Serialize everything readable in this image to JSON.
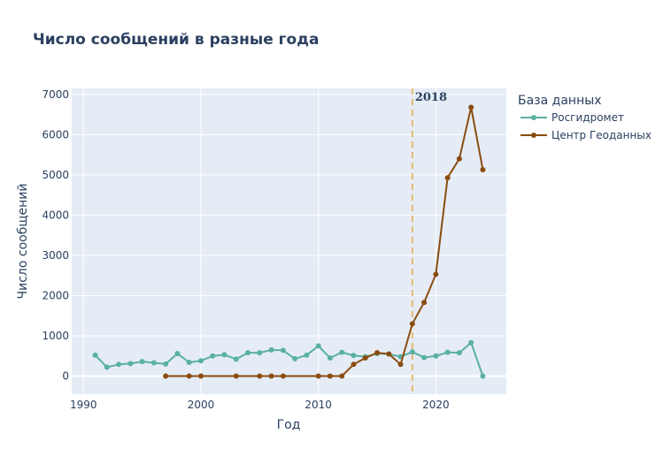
{
  "chart_data": {
    "type": "line",
    "title": "Число сообщений в разные года",
    "xlabel": "Год",
    "ylabel": "Число сообщений",
    "xlim": [
      1989,
      2026
    ],
    "ylim": [
      -450,
      7150
    ],
    "x_ticks": [
      1990,
      2000,
      2010,
      2020
    ],
    "y_ticks": [
      0,
      1000,
      2000,
      3000,
      4000,
      5000,
      6000,
      7000
    ],
    "grid": true,
    "legend": {
      "title": "База данных",
      "placement": "top-right outside"
    },
    "annotation": {
      "x": 2018,
      "label": "2018",
      "style": "dashed vertical line",
      "color": "#e6b96e"
    },
    "series": [
      {
        "name": "Росгидромет",
        "color": "#5ab0a3",
        "x": [
          1991,
          1992,
          1993,
          1994,
          1995,
          1996,
          1997,
          1998,
          1999,
          2000,
          2001,
          2002,
          2003,
          2004,
          2005,
          2006,
          2007,
          2008,
          2009,
          2010,
          2011,
          2012,
          2013,
          2014,
          2015,
          2016,
          2017,
          2018,
          2019,
          2020,
          2021,
          2022,
          2023,
          2024
        ],
        "values": [
          520,
          220,
          290,
          310,
          360,
          330,
          300,
          560,
          340,
          380,
          500,
          530,
          420,
          580,
          580,
          650,
          640,
          430,
          520,
          750,
          450,
          590,
          510,
          480,
          560,
          550,
          480,
          600,
          460,
          500,
          590,
          580,
          830,
          0
        ]
      },
      {
        "name": "Центр Геоданных",
        "color": "#8b4c0f",
        "x": [
          1997,
          1999,
          2000,
          2003,
          2005,
          2006,
          2007,
          2010,
          2011,
          2012,
          2013,
          2014,
          2015,
          2016,
          2017,
          2018,
          2019,
          2020,
          2021,
          2022,
          2023,
          2024
        ],
        "values": [
          0,
          0,
          0,
          0,
          0,
          0,
          0,
          0,
          0,
          0,
          290,
          450,
          580,
          550,
          290,
          1300,
          1830,
          2530,
          4930,
          5400,
          6680,
          5130
        ]
      }
    ]
  }
}
